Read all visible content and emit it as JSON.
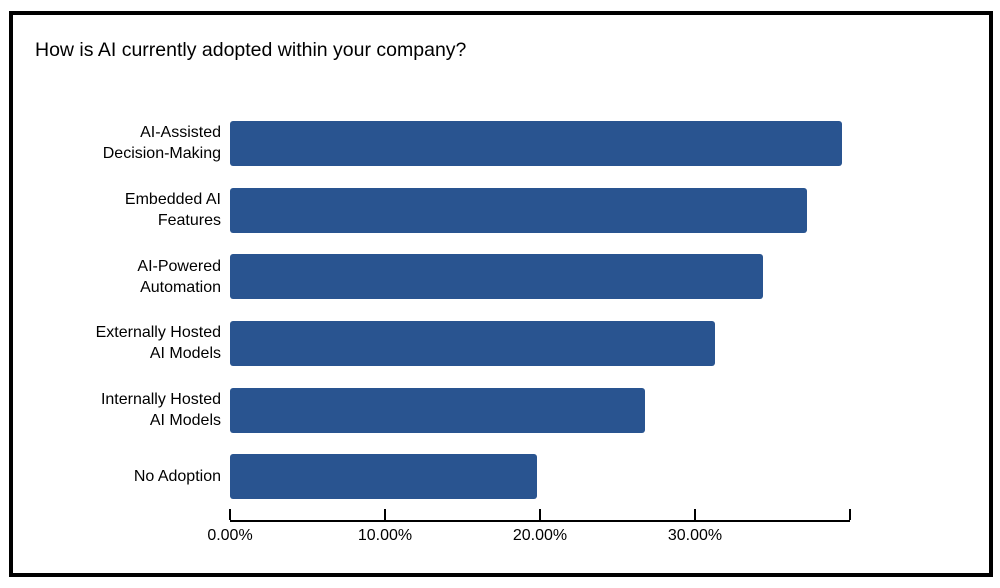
{
  "chart": {
    "title": "How is AI currently adopted within your company?"
  },
  "chart_data": {
    "type": "bar",
    "orientation": "horizontal",
    "title": "How is AI currently adopted within your company?",
    "categories": [
      "AI-Assisted Decision-Making",
      "Embedded AI Features",
      "AI-Powered Automation",
      "Externally Hosted AI Models",
      "Internally Hosted AI Models",
      "No Adoption"
    ],
    "category_label_lines": [
      [
        "AI-Assisted",
        "Decision-Making"
      ],
      [
        "Embedded AI",
        "Features"
      ],
      [
        "AI-Powered",
        "Automation"
      ],
      [
        "Externally Hosted",
        "AI Models"
      ],
      [
        "Internally Hosted",
        "AI Models"
      ],
      [
        "No Adoption"
      ]
    ],
    "values": [
      39.5,
      37.2,
      34.4,
      31.3,
      26.8,
      19.8
    ],
    "unit": "%",
    "xlabel": "",
    "ylabel": "",
    "xlim": [
      0,
      40
    ],
    "x_tick_labels": [
      "0.00%",
      "10.00%",
      "20.00%",
      "30.00%"
    ],
    "x_tick_label_positions_pct": [
      0,
      25,
      50,
      75
    ],
    "x_tick_mark_positions_pct": [
      0,
      25,
      50,
      75,
      100
    ],
    "bar_color": "#295490",
    "text_color": "#000000",
    "axis_color": "#000000",
    "grid": "off",
    "legend": "none"
  }
}
